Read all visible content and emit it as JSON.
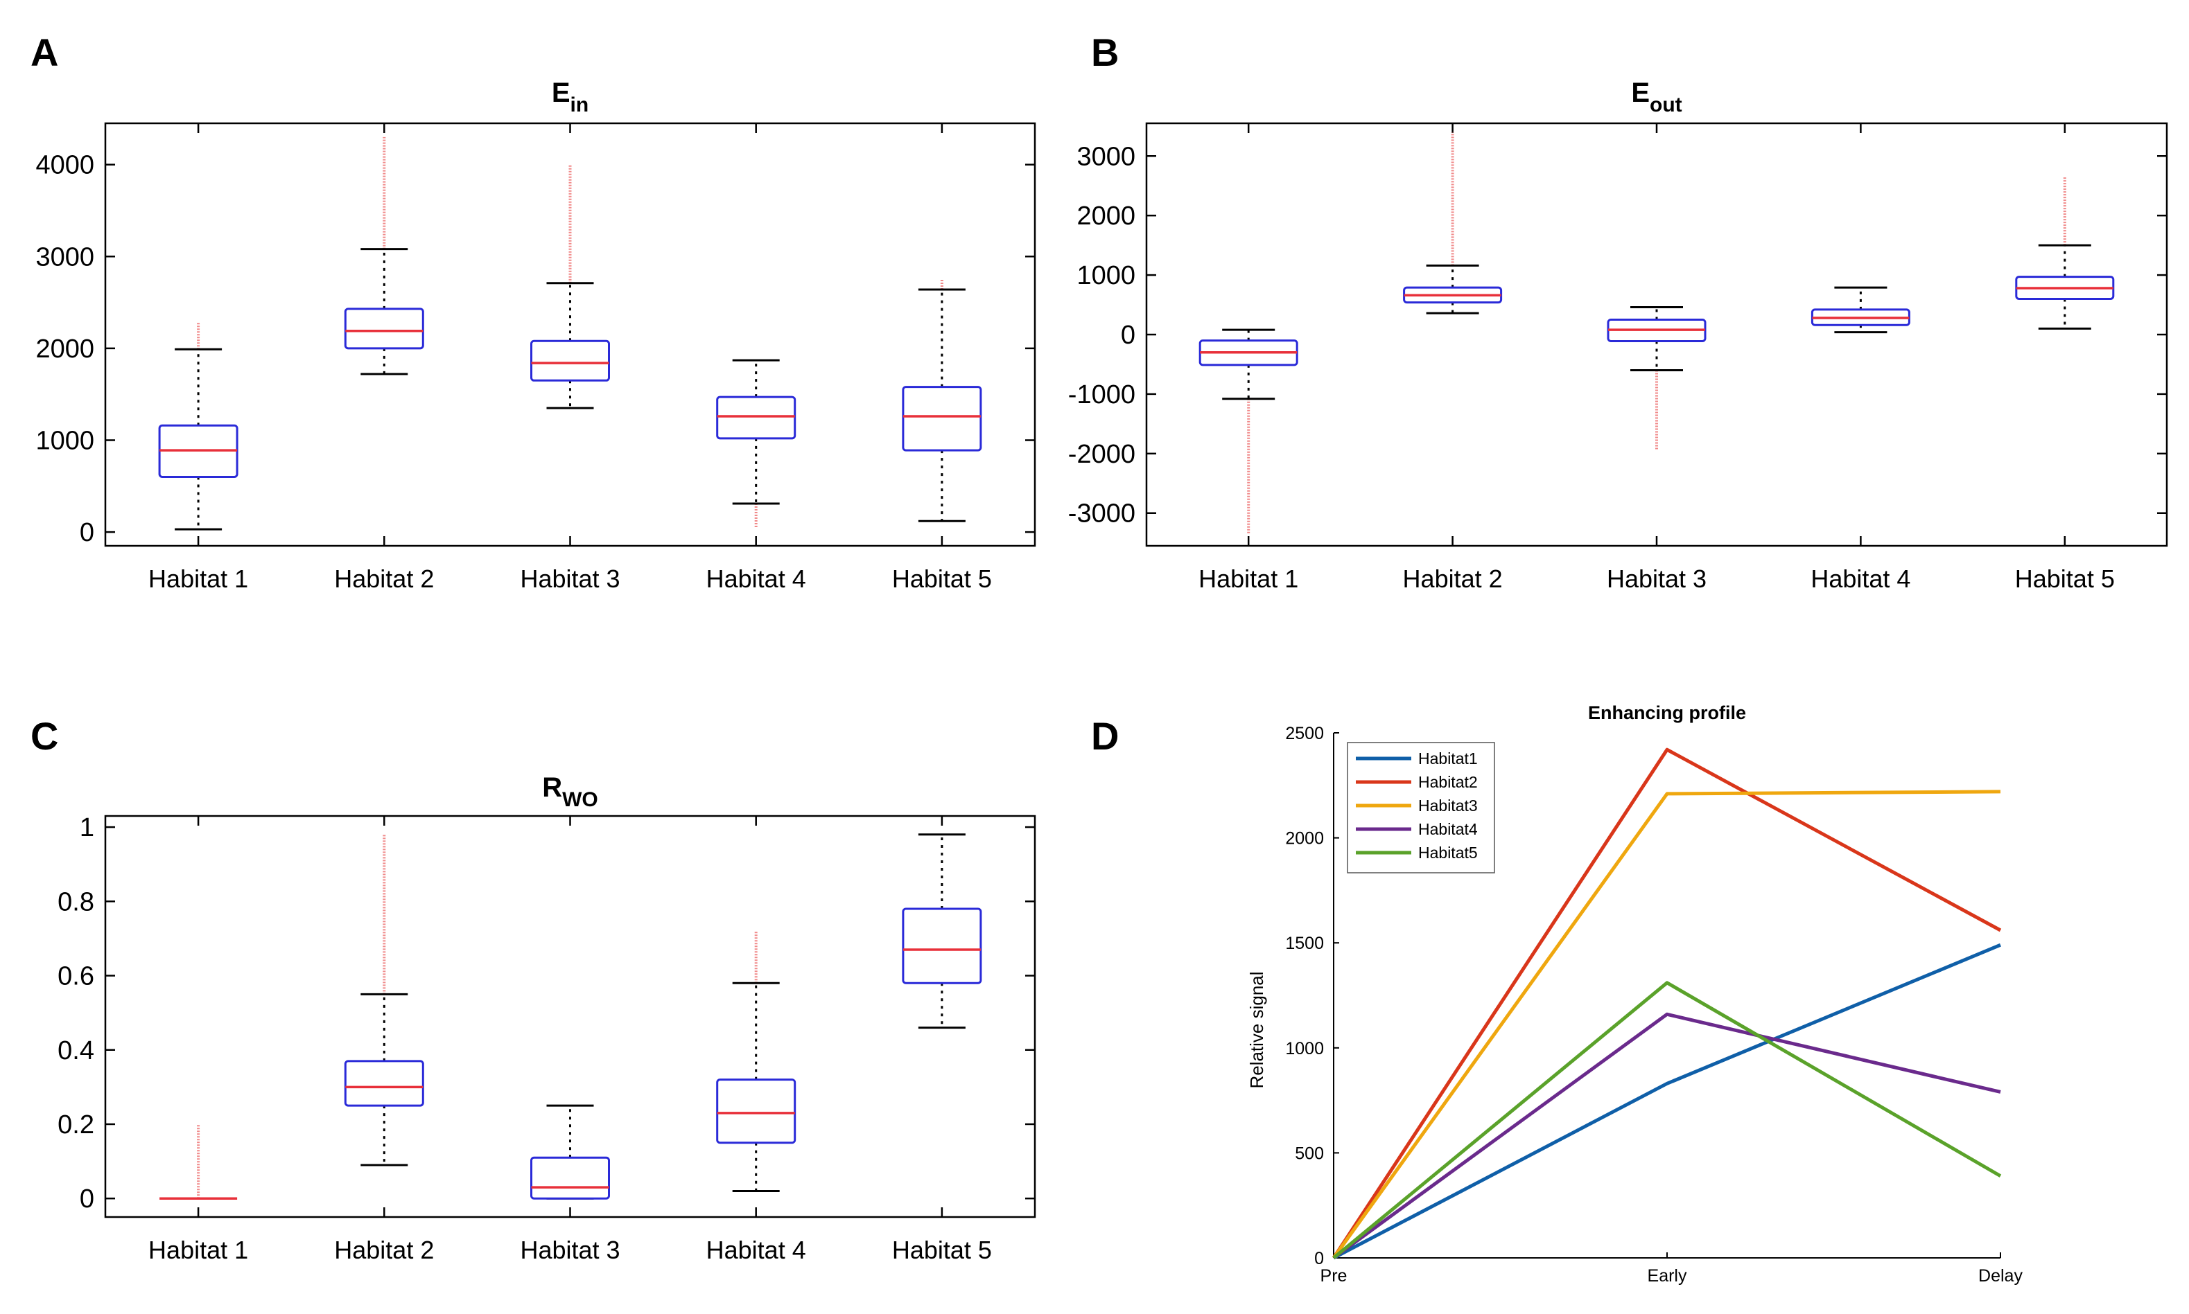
{
  "colors": {
    "axis": "#000000",
    "box": "#2a2ad8",
    "median": "#e8303a",
    "whisker": "#000000",
    "outlier": "#f08a8a",
    "habitat1": "#0f5fa8",
    "habitat2": "#d9361a",
    "habitat3": "#efa70f",
    "habitat4": "#6a2a8c",
    "habitat5": "#5aa22a"
  },
  "chart_data": [
    {
      "panel": "A",
      "type": "box",
      "title": "E",
      "title_sub": "in",
      "categories": [
        "Habitat 1",
        "Habitat 2",
        "Habitat 3",
        "Habitat 4",
        "Habitat 5"
      ],
      "ylim": [
        -150,
        4450
      ],
      "yticks": [
        0,
        1000,
        2000,
        3000,
        4000
      ],
      "ytick_labels": [
        "0",
        "1000",
        "2000",
        "3000",
        "4000"
      ],
      "boxes": [
        {
          "whisker_low": 30,
          "q1": 600,
          "median": 890,
          "q3": 1160,
          "whisker_high": 1990,
          "outlier_max": 2280
        },
        {
          "whisker_low": 1720,
          "q1": 2000,
          "median": 2190,
          "q3": 2430,
          "whisker_high": 3080,
          "outlier_max": 4300
        },
        {
          "whisker_low": 1350,
          "q1": 1650,
          "median": 1840,
          "q3": 2080,
          "whisker_high": 2710,
          "outlier_max": 4000
        },
        {
          "whisker_low": 310,
          "q1": 1020,
          "median": 1260,
          "q3": 1470,
          "whisker_high": 1870,
          "outlier_min": 50
        },
        {
          "whisker_low": 120,
          "q1": 890,
          "median": 1260,
          "q3": 1580,
          "whisker_high": 2640,
          "outlier_max": 2760
        }
      ]
    },
    {
      "panel": "B",
      "type": "box",
      "title": "E",
      "title_sub": "out",
      "categories": [
        "Habitat 1",
        "Habitat 2",
        "Habitat 3",
        "Habitat 4",
        "Habitat 5"
      ],
      "ylim": [
        -3550,
        3550
      ],
      "yticks": [
        -3000,
        -2000,
        -1000,
        0,
        1000,
        2000,
        3000
      ],
      "ytick_labels": [
        "-3000",
        "-2000",
        "-1000",
        "0",
        "1000",
        "2000",
        "3000"
      ],
      "boxes": [
        {
          "whisker_low": -1080,
          "q1": -510,
          "median": -300,
          "q3": -100,
          "whisker_high": 80,
          "outlier_min": -3350
        },
        {
          "whisker_low": 360,
          "q1": 540,
          "median": 660,
          "q3": 790,
          "whisker_high": 1160,
          "outlier_max": 3400
        },
        {
          "whisker_low": -600,
          "q1": -110,
          "median": 80,
          "q3": 250,
          "whisker_high": 460,
          "outlier_min": -1950
        },
        {
          "whisker_low": 40,
          "q1": 160,
          "median": 280,
          "q3": 420,
          "whisker_high": 790
        },
        {
          "whisker_low": 100,
          "q1": 600,
          "median": 780,
          "q3": 970,
          "whisker_high": 1500,
          "outlier_max": 2650
        }
      ]
    },
    {
      "panel": "C",
      "type": "box",
      "title": "R",
      "title_sub": "WO",
      "categories": [
        "Habitat 1",
        "Habitat 2",
        "Habitat 3",
        "Habitat 4",
        "Habitat 5"
      ],
      "ylim": [
        -0.05,
        1.03
      ],
      "yticks": [
        0,
        0.2,
        0.4,
        0.6,
        0.8,
        1
      ],
      "ytick_labels": [
        "0",
        "0.2",
        "0.4",
        "0.6",
        "0.8",
        "1"
      ],
      "boxes": [
        {
          "whisker_low": 0,
          "q1": 0,
          "median": 0,
          "q3": 0,
          "whisker_high": 0,
          "outlier_max": 0.2
        },
        {
          "whisker_low": 0.09,
          "q1": 0.25,
          "median": 0.3,
          "q3": 0.37,
          "whisker_high": 0.55,
          "outlier_max": 0.98
        },
        {
          "whisker_low": 0,
          "q1": 0,
          "median": 0.03,
          "q3": 0.11,
          "whisker_high": 0.25
        },
        {
          "whisker_low": 0.02,
          "q1": 0.15,
          "median": 0.23,
          "q3": 0.32,
          "whisker_high": 0.58,
          "outlier_max": 0.72
        },
        {
          "whisker_low": 0.46,
          "q1": 0.58,
          "median": 0.67,
          "q3": 0.78,
          "whisker_high": 0.98
        }
      ]
    },
    {
      "panel": "D",
      "type": "line",
      "title": "Enhancing profile",
      "xlabel": "",
      "ylabel": "Relative signal",
      "x": [
        "Pre",
        "Early",
        "Delay"
      ],
      "ylim": [
        0,
        2500
      ],
      "yticks": [
        0,
        500,
        1000,
        1500,
        2000,
        2500
      ],
      "ytick_labels": [
        "0",
        "500",
        "1000",
        "1500",
        "2000",
        "2500"
      ],
      "legend_position": "top-left",
      "series": [
        {
          "name": "Habitat1",
          "values": [
            0,
            830,
            1490
          ]
        },
        {
          "name": "Habitat2",
          "values": [
            0,
            2420,
            1560
          ]
        },
        {
          "name": "Habitat3",
          "values": [
            0,
            2210,
            2220
          ]
        },
        {
          "name": "Habitat4",
          "values": [
            0,
            1160,
            790
          ]
        },
        {
          "name": "Habitat5",
          "values": [
            0,
            1310,
            390
          ]
        }
      ]
    }
  ]
}
